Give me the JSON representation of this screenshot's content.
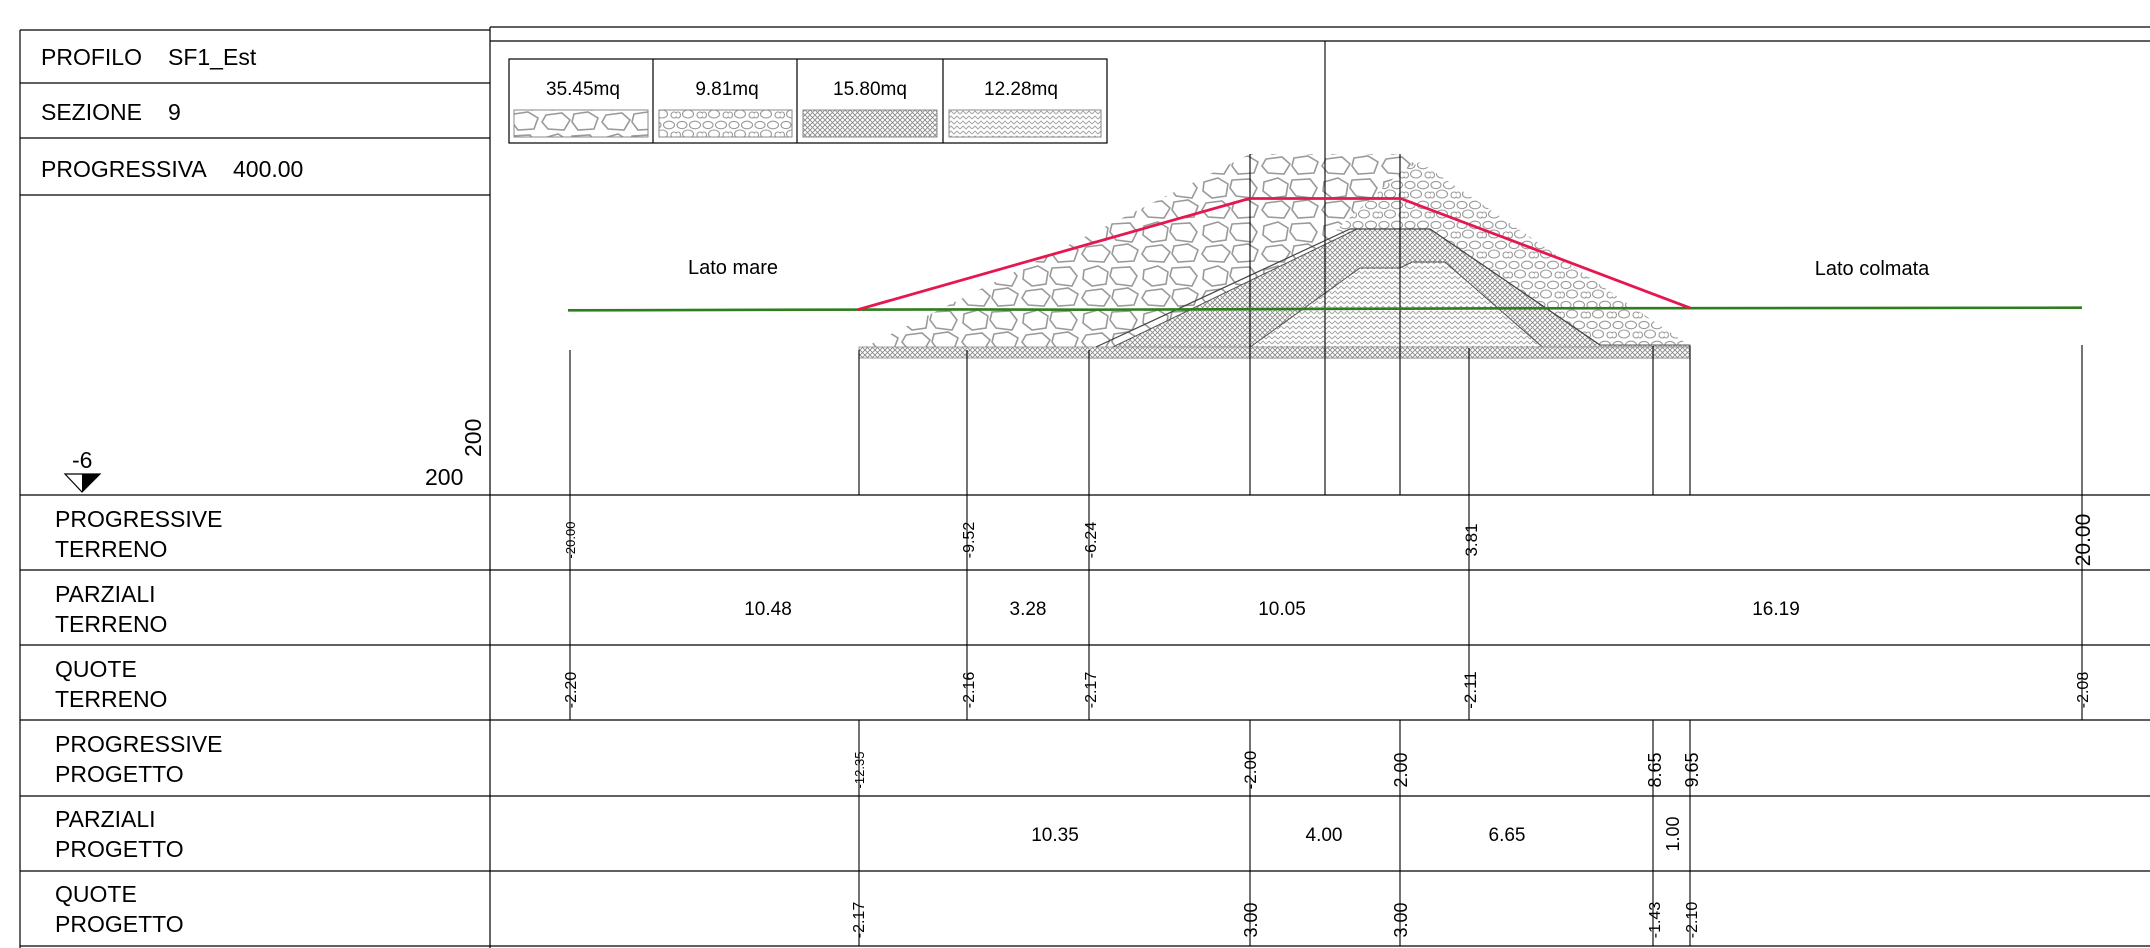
{
  "header": {
    "profilo_label": "PROFILO",
    "profilo_value": "SF1_Est",
    "sezione_label": "SEZIONE",
    "sezione_value": "9",
    "progressiva_label": "PROGRESSIVA",
    "progressiva_value": "400.00"
  },
  "scale": {
    "vertical": "200",
    "horizontal": "200",
    "datum": "-6"
  },
  "legend": [
    {
      "area": "35.45mq",
      "pattern": "rocks-large"
    },
    {
      "area": "9.81mq",
      "pattern": "rocks-small"
    },
    {
      "area": "15.80mq",
      "pattern": "crosshatch"
    },
    {
      "area": "12.28mq",
      "pattern": "chevron"
    }
  ],
  "section": {
    "left_label": "Lato mare",
    "right_label": "Lato colmata",
    "ground_color": "#2e7d1f",
    "project_color": "#e5174e",
    "ground_profile": [
      [
        -20.0,
        -2.2
      ],
      [
        -9.52,
        -2.16
      ],
      [
        -6.24,
        -2.17
      ],
      [
        3.81,
        -2.11
      ],
      [
        20.0,
        -2.08
      ]
    ],
    "project_profile": [
      [
        -12.35,
        -2.17
      ],
      [
        -2.0,
        3.0
      ],
      [
        2.0,
        3.0
      ],
      [
        9.65,
        -2.1
      ]
    ]
  },
  "table": {
    "rows": [
      {
        "label1": "PROGRESSIVE",
        "label2": "TERRENO"
      },
      {
        "label1": "PARZIALI",
        "label2": "TERRENO"
      },
      {
        "label1": "QUOTE",
        "label2": "TERRENO"
      },
      {
        "label1": "PROGRESSIVE",
        "label2": "PROGETTO"
      },
      {
        "label1": "PARZIALI",
        "label2": "PROGETTO"
      },
      {
        "label1": "QUOTE",
        "label2": "PROGETTO"
      }
    ],
    "progressive_terreno": [
      "-20.00",
      "-9.52",
      "-6.24",
      "3.81",
      "20.00"
    ],
    "parziali_terreno": [
      "10.48",
      "3.28",
      "10.05",
      "16.19"
    ],
    "quote_terreno": [
      "-2.20",
      "-2.16",
      "-2.17",
      "-2.11",
      "-2.08"
    ],
    "progressive_progetto": [
      "-12.35",
      "-2.00",
      "2.00",
      "8.65",
      "9.65"
    ],
    "parziali_progetto": [
      "10.35",
      "4.00",
      "6.65",
      "1.00"
    ],
    "quote_progetto": [
      "-2.17",
      "3.00",
      "3.00",
      "-1.43",
      "-2.10"
    ]
  }
}
